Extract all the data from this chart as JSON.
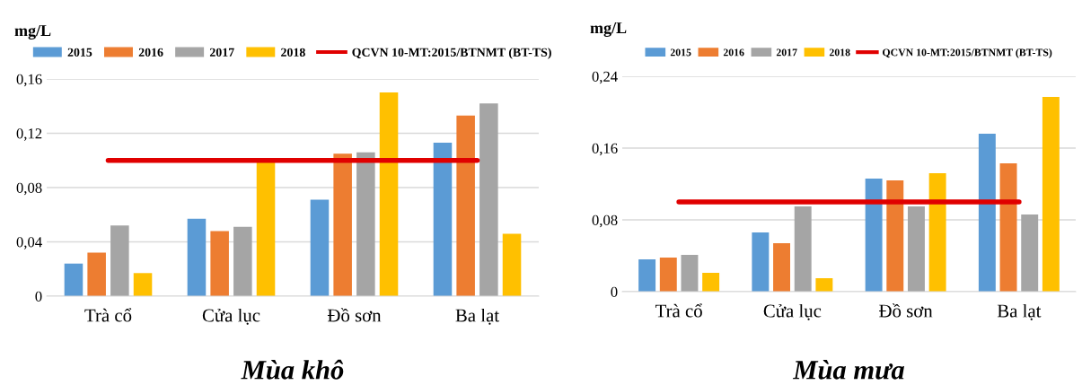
{
  "chart_data": [
    {
      "type": "bar",
      "title": "Mùa khô",
      "ylabel": "mg/L",
      "categories": [
        "Trà cổ",
        "Cửa lục",
        "Đồ sơn",
        "Ba lạt"
      ],
      "series": [
        {
          "name": "2015",
          "color": "#5b9bd5",
          "values": [
            0.024,
            0.057,
            0.071,
            0.113
          ]
        },
        {
          "name": "2016",
          "color": "#ed7d31",
          "values": [
            0.032,
            0.048,
            0.105,
            0.133
          ]
        },
        {
          "name": "2017",
          "color": "#a5a5a5",
          "values": [
            0.052,
            0.051,
            0.106,
            0.142
          ]
        },
        {
          "name": "2018",
          "color": "#ffc000",
          "values": [
            0.017,
            0.1,
            0.15,
            0.046
          ]
        },
        {
          "name": "QCVN 10-MT:2015/BTNMT (BT-TS)",
          "type": "line",
          "color": "#e00000",
          "values": [
            0.1,
            0.1,
            0.1,
            0.1
          ]
        }
      ],
      "ylim": [
        0,
        0.16
      ],
      "yticks": [
        0,
        {
          "value": 0.04,
          "label": "0,04"
        },
        {
          "value": 0.08,
          "label": "0,08"
        },
        {
          "value": 0.12,
          "label": "0,12"
        },
        {
          "value": 0.16,
          "label": "0,16"
        }
      ],
      "grid": "y",
      "legend": "top"
    },
    {
      "type": "bar",
      "title": "Mùa mưa",
      "ylabel": "mg/L",
      "categories": [
        "Trà cổ",
        "Cửa lục",
        "Đồ sơn",
        "Ba lạt"
      ],
      "series": [
        {
          "name": "2015",
          "color": "#5b9bd5",
          "values": [
            0.036,
            0.066,
            0.126,
            0.176
          ]
        },
        {
          "name": "2016",
          "color": "#ed7d31",
          "values": [
            0.038,
            0.054,
            0.124,
            0.143
          ]
        },
        {
          "name": "2017",
          "color": "#a5a5a5",
          "values": [
            0.041,
            0.095,
            0.095,
            0.086
          ]
        },
        {
          "name": "2018",
          "color": "#ffc000",
          "values": [
            0.021,
            0.015,
            0.132,
            0.217
          ]
        },
        {
          "name": "QCVN 10-MT:2015/BTNMT (BT-TS)",
          "type": "line",
          "color": "#e00000",
          "values": [
            0.1,
            0.1,
            0.1,
            0.1
          ]
        }
      ],
      "ylim": [
        0,
        0.24
      ],
      "yticks": [
        0,
        {
          "value": 0.08,
          "label": "0,08"
        },
        {
          "value": 0.16,
          "label": "0,16"
        },
        {
          "value": 0.24,
          "label": "0,24"
        }
      ],
      "grid": "y",
      "legend": "top"
    }
  ]
}
